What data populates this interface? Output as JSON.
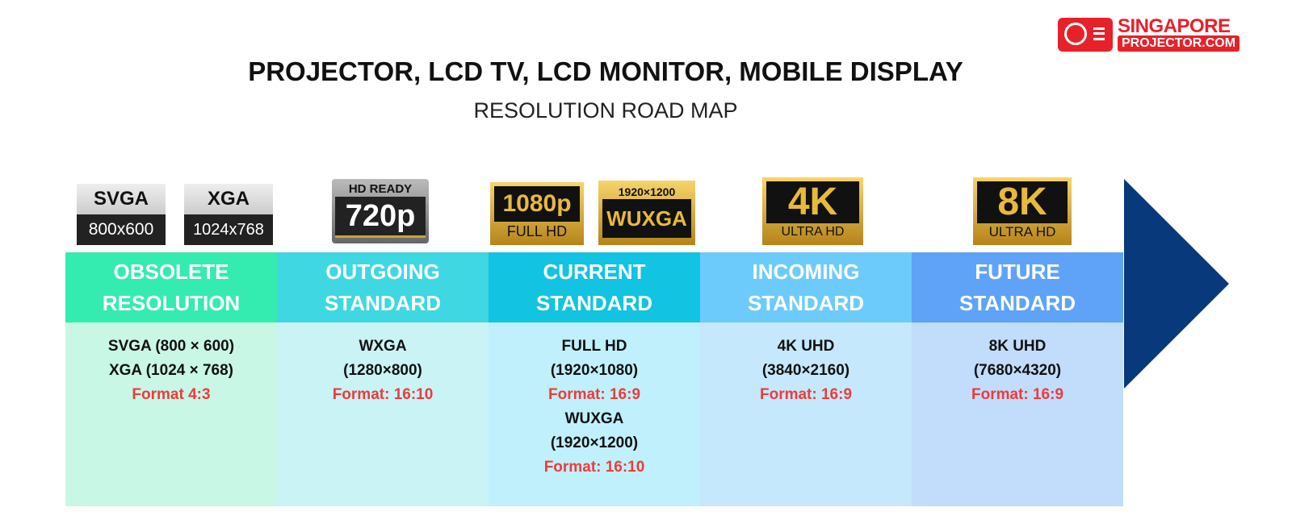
{
  "title": "PROJECTOR, LCD TV, LCD MONITOR, MOBILE DISPLAY",
  "subtitle": "RESOLUTION ROAD MAP",
  "logo": {
    "line1": "SINGAPORE",
    "line2": "PROJECTOR.COM",
    "color": "#e62129"
  },
  "badges": {
    "svga": {
      "top": "SVGA",
      "bottom": "800x600"
    },
    "xga": {
      "top": "XGA",
      "bottom": "1024x768"
    },
    "hd720": {
      "top": "HD READY",
      "bottom": "720p"
    },
    "fhd": {
      "top": "1080p",
      "bottom": "FULL HD"
    },
    "wuxga": {
      "top": "1920×1200",
      "bottom": "WUXGA"
    },
    "k4": {
      "top": "4K",
      "bottom": "ULTRA HD"
    },
    "k8": {
      "top": "8K",
      "bottom": "ULTRA HD"
    }
  },
  "columns": [
    {
      "head": [
        "OBSOLETE",
        "RESOLUTION"
      ],
      "color": "#34ebb0",
      "bg": "#c9f7e6",
      "lines": [
        {
          "t": "SVGA (800 × 600)"
        },
        {
          "t": "XGA (1024 × 768)"
        },
        {
          "t": "Format 4:3",
          "red": true
        }
      ]
    },
    {
      "head": [
        "OUTGOING",
        "STANDARD"
      ],
      "color": "#3fd7e2",
      "bg": "#c9f3f5",
      "lines": [
        {
          "t": "WXGA"
        },
        {
          "t": "(1280×800)"
        },
        {
          "t": "Format: 16:10",
          "red": true
        }
      ]
    },
    {
      "head": [
        "CURRENT",
        "STANDARD"
      ],
      "color": "#12c3e2",
      "bg": "#c0f0fb",
      "lines": [
        {
          "t": "FULL HD"
        },
        {
          "t": "(1920×1080)"
        },
        {
          "t": "Format: 16:9",
          "red": true
        },
        {
          "t": "WUXGA"
        },
        {
          "t": "(1920×1200)"
        },
        {
          "t": "Format: 16:10",
          "red": true
        }
      ]
    },
    {
      "head": [
        "INCOMING",
        "STANDARD"
      ],
      "color": "#6dcbfb",
      "bg": "#c6e8fc",
      "lines": [
        {
          "t": "4K UHD"
        },
        {
          "t": "(3840×2160)"
        },
        {
          "t": "Format: 16:9",
          "red": true
        }
      ]
    },
    {
      "head": [
        "FUTURE",
        "STANDARD"
      ],
      "color": "#5ea3f7",
      "bg": "#c2dcfc",
      "lines": [
        {
          "t": "8K UHD"
        },
        {
          "t": "(7680×4320)"
        },
        {
          "t": "Format: 16:9",
          "red": true
        }
      ]
    }
  ],
  "arrow_color": "#07397b"
}
